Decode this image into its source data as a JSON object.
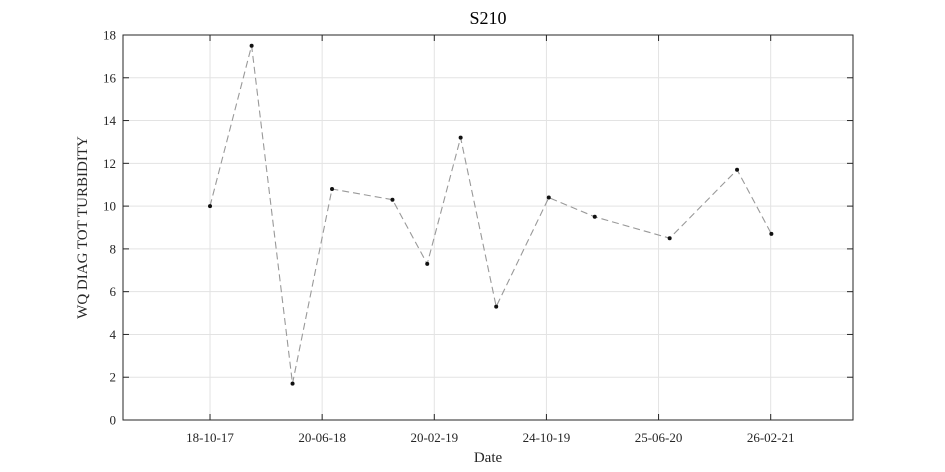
{
  "chart_data": {
    "type": "line",
    "title": "S210",
    "xlabel": "Date",
    "ylabel": "WQ DIAG TOT TURBIDITY",
    "ylim": [
      0,
      18
    ],
    "yticks": [
      0,
      2,
      4,
      6,
      8,
      10,
      12,
      14,
      16,
      18
    ],
    "xlim": [
      -0.776,
      5.734
    ],
    "xticks": [
      {
        "pos": 0,
        "label": "18-10-17"
      },
      {
        "pos": 1,
        "label": "20-06-18"
      },
      {
        "pos": 2,
        "label": "20-02-19"
      },
      {
        "pos": 3,
        "label": "24-10-19"
      },
      {
        "pos": 4,
        "label": "25-06-20"
      },
      {
        "pos": 5,
        "label": "26-02-21"
      }
    ],
    "grid": true,
    "series": [
      {
        "name": "S210",
        "line_style": "dashed",
        "line_color": "#999999",
        "marker_color": "#111111",
        "x": [
          0.0,
          0.371,
          0.736,
          1.088,
          1.627,
          1.937,
          2.235,
          2.552,
          3.021,
          3.431,
          4.099,
          4.7,
          5.006
        ],
        "y": [
          10.0,
          17.5,
          1.7,
          10.8,
          10.3,
          7.3,
          13.2,
          5.3,
          10.4,
          9.5,
          8.5,
          11.7,
          8.7
        ]
      }
    ]
  }
}
